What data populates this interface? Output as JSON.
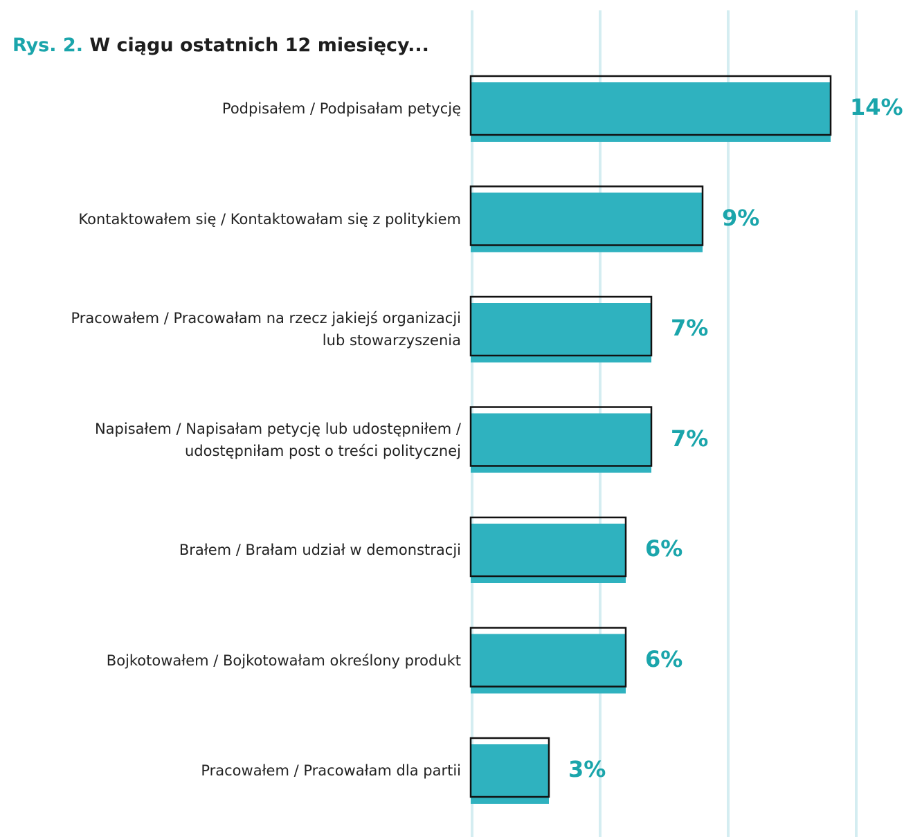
{
  "chart_data": {
    "type": "bar",
    "orientation": "horizontal",
    "figure_label": "Rys. 2.",
    "title": "W ciągu ostatnich 12 miesięcy...",
    "categories": [
      "Podpisałem / Podpisałam petycję",
      "Kontaktowałem się / Kontaktowałam się z politykiem",
      "Pracowałem / Pracowałam na rzecz jakiejś organizacji\nlub stowarzyszenia",
      "Napisałem / Napisałam petycję lub udostępniłem /\nudostępniłam post o treści politycznej",
      "Brałem / Brałam udział w demonstracji",
      "Bojkotowałem / Bojkotowałam określony produkt",
      "Pracowałem / Pracowałam dla partii"
    ],
    "values": [
      14,
      9,
      7,
      7,
      6,
      6,
      3
    ],
    "value_labels": [
      "14%",
      "9%",
      "7%",
      "7%",
      "6%",
      "6%",
      "3%"
    ],
    "color": "#2fb2bf",
    "xlim": [
      0,
      15
    ],
    "xticks": [
      0,
      5,
      10,
      15
    ],
    "grid": true
  }
}
